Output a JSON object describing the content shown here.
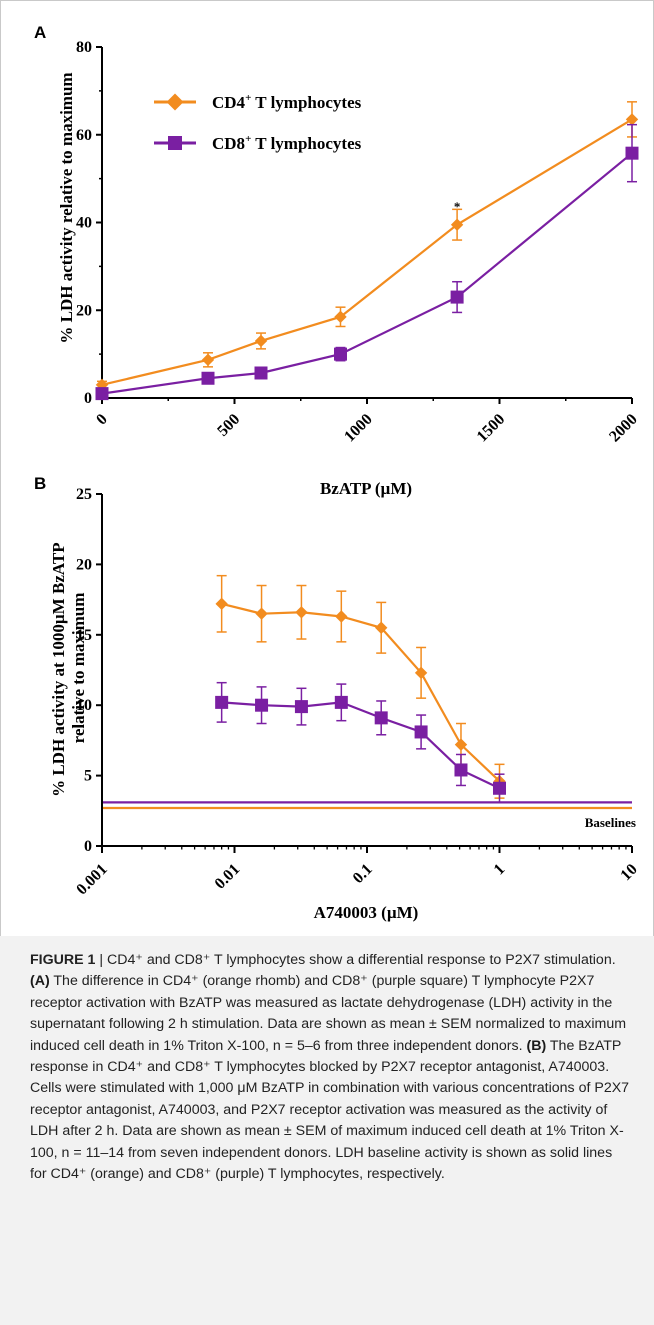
{
  "colors": {
    "cd4": "#f28c1f",
    "cd8": "#7a1fa2",
    "caption_bg": "#f2f2f2"
  },
  "panel_labels": {
    "a": "A",
    "b": "B"
  },
  "chart_data": [
    {
      "type": "line",
      "panel": "A",
      "xlabel": "BzATP (µM)",
      "ylabel": "% LDH activity relative to maximum",
      "xlim": [
        0,
        2000
      ],
      "ylim": [
        0,
        80
      ],
      "xticks": [
        "0",
        "500",
        "1000",
        "1500",
        "2000"
      ],
      "yticks": [
        "0",
        "20",
        "40",
        "60",
        "80"
      ],
      "legend_position": "top-left",
      "series": [
        {
          "name": "CD4⁺ T lymphocytes",
          "name_main": "CD4",
          "name_sup": "+",
          "name_rest": " T lymphocytes",
          "marker": "diamond",
          "x": [
            0,
            400,
            600,
            900,
            1340,
            2000
          ],
          "y": [
            3,
            8.7,
            13,
            18.5,
            39.5,
            63.5
          ],
          "err": [
            0.8,
            1.6,
            1.8,
            2.2,
            3.5,
            4
          ]
        },
        {
          "name": "CD8⁺ T lymphocytes",
          "name_main": "CD8",
          "name_sup": "+",
          "name_rest": " T lymphocytes",
          "marker": "square",
          "x": [
            0,
            400,
            600,
            900,
            1340,
            2000
          ],
          "y": [
            1,
            4.5,
            5.7,
            10,
            23,
            55.8
          ],
          "err": [
            0.5,
            0.9,
            0.7,
            1.5,
            3.5,
            6.5
          ]
        }
      ],
      "annotations": [
        {
          "text": "*",
          "x": 1340,
          "y": 43.5
        }
      ]
    },
    {
      "type": "line",
      "panel": "B",
      "xscale": "log",
      "xlabel": "A740003 (µM)",
      "ylabel_lines": [
        "% LDH activity at 1000µM BzATP",
        "relative to maximum"
      ],
      "xlim": [
        0.001,
        10
      ],
      "ylim": [
        0,
        25
      ],
      "xticks": [
        "0.001",
        "0.01",
        "0.1",
        "1",
        "10"
      ],
      "yticks": [
        "0",
        "5",
        "10",
        "15",
        "20",
        "25"
      ],
      "series": [
        {
          "name": "CD4⁺ T lymphocytes",
          "marker": "diamond",
          "x": [
            0.008,
            0.016,
            0.032,
            0.064,
            0.128,
            0.256,
            0.512,
            1.0
          ],
          "y": [
            17.2,
            16.5,
            16.6,
            16.3,
            15.5,
            12.3,
            7.2,
            4.6
          ],
          "err": [
            2.0,
            2.0,
            1.9,
            1.8,
            1.8,
            1.8,
            1.5,
            1.2
          ]
        },
        {
          "name": "CD8⁺ T lymphocytes",
          "marker": "square",
          "x": [
            0.008,
            0.016,
            0.032,
            0.064,
            0.128,
            0.256,
            0.512,
            1.0
          ],
          "y": [
            10.2,
            10.0,
            9.9,
            10.2,
            9.1,
            8.1,
            5.4,
            4.1
          ],
          "err": [
            1.4,
            1.3,
            1.3,
            1.3,
            1.2,
            1.2,
            1.1,
            1.0
          ]
        }
      ],
      "baselines": [
        {
          "series": "CD8⁺ T lymphocytes",
          "y": 3.1
        },
        {
          "series": "CD4⁺ T lymphocytes",
          "y": 2.7
        }
      ],
      "baseline_label": "Baselines"
    }
  ],
  "caption": {
    "figure_label": "FIGURE 1",
    "text": " | CD4⁺ and CD8⁺ T lymphocytes show a differential response to P2X7 stimulation. ",
    "part_a_label": "(A)",
    "part_a_text": " The difference in CD4⁺ (orange rhomb) and CD8⁺ (purple square) T lymphocyte P2X7 receptor activation with BzATP was measured as lactate dehydrogenase (LDH) activity in the supernatant following 2 h stimulation. Data are shown as mean ± SEM normalized to maximum induced cell death in 1% Triton X-100, n = 5–6 from three independent donors. ",
    "part_b_label": "(B)",
    "part_b_text": " The BzATP response in CD4⁺ and CD8⁺ T lymphocytes blocked by P2X7 receptor antagonist, A740003. Cells were stimulated with 1,000 μM BzATP in combination with various concentrations of P2X7 receptor antagonist, A740003, and P2X7 receptor activation was measured as the activity of LDH after 2 h. Data are shown as mean ± SEM of maximum induced cell death at 1% Triton X-100, n = 11–14 from seven independent donors. LDH baseline activity is shown as solid lines for CD4⁺ (orange) and CD8⁺ (purple) T lymphocytes, respectively."
  }
}
